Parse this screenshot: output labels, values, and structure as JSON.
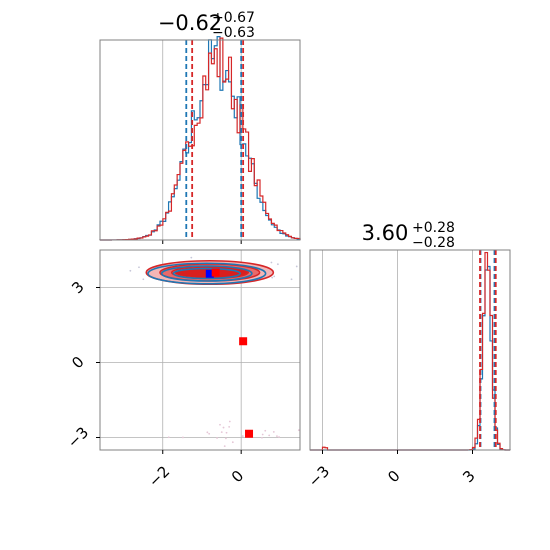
{
  "colors": {
    "red": "#d62728",
    "blue": "#1f77b4",
    "red_fill_light": "#f3b6b6",
    "red_fill_mid": "#e86a6a",
    "red_fill_dark": "#d81f1f",
    "grid": "#b0b0b0",
    "spine": "#808080",
    "marker_red": "#ff0000",
    "marker_blue": "#0000ff"
  },
  "chart_data": {
    "type": "corner",
    "grid": true,
    "panels": [
      {
        "id": "hist-param1",
        "type": "histogram",
        "title": {
          "value": "−0.62",
          "upper": "+0.67",
          "lower": "−0.63"
        },
        "xlim": [
          -3.6,
          1.5
        ],
        "median": -0.62,
        "series": [
          {
            "color": "blue",
            "quantiles": [
              -1.4,
              0.0
            ]
          },
          {
            "color": "red",
            "quantiles": [
              -1.25,
              0.05
            ]
          }
        ]
      },
      {
        "id": "scatter-2d",
        "type": "contour_scatter",
        "xlim": [
          -3.6,
          1.5
        ],
        "ylim": [
          -3.5,
          4.5
        ],
        "xticks": [
          -2,
          0
        ],
        "yticks": [
          -3,
          0,
          3
        ],
        "xtick_labels": [
          "−2",
          "0"
        ],
        "ytick_labels": [
          "−3",
          "0",
          "3"
        ],
        "contour_center": {
          "x": -0.8,
          "y": 3.6
        },
        "markers": [
          {
            "x": -0.8,
            "y": 3.55,
            "color": "marker_blue"
          },
          {
            "x": -0.65,
            "y": 3.6,
            "color": "marker_red"
          },
          {
            "x": 0.05,
            "y": 0.85,
            "color": "marker_red"
          },
          {
            "x": 0.2,
            "y": -2.85,
            "color": "marker_red"
          }
        ]
      },
      {
        "id": "hist-param2",
        "type": "histogram",
        "title": {
          "value": "3.60",
          "upper": "+0.28",
          "lower": "−0.28"
        },
        "xlim": [
          -3.5,
          4.5
        ],
        "xticks": [
          -3,
          0,
          3
        ],
        "xtick_labels": [
          "−3",
          "0",
          "3"
        ],
        "median": 3.6,
        "series": [
          {
            "color": "blue",
            "quantiles": [
              3.32,
              3.88
            ]
          },
          {
            "color": "red",
            "quantiles": [
              3.3,
              3.93
            ]
          }
        ]
      }
    ]
  }
}
